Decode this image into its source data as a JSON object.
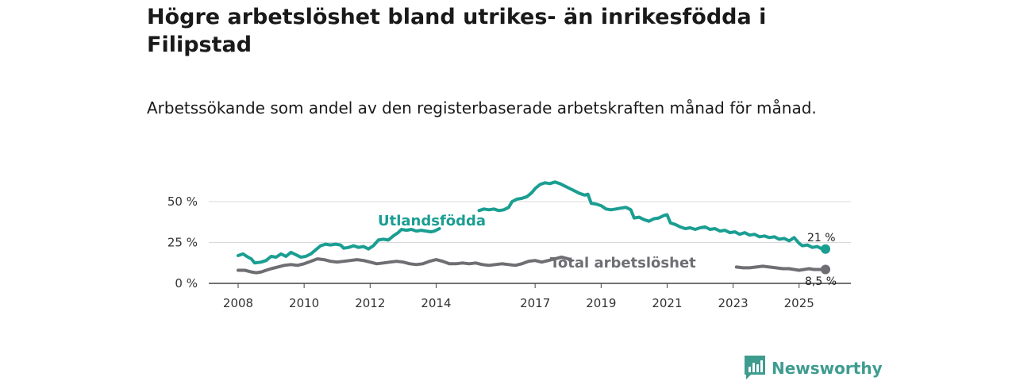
{
  "chart_data": {
    "type": "line",
    "title": "Högre arbetslöshet bland utrikes- än inrikesfödda i Filipstad",
    "subtitle": "Arbetssökande som andel av den registerbaserade arbetskraften månad för månad.",
    "xlabel": "",
    "ylabel": "",
    "xlim": [
      2008,
      2025.8
    ],
    "ylim": [
      0,
      60
    ],
    "y_ticks": [
      {
        "value": 0,
        "label": "0 %"
      },
      {
        "value": 25,
        "label": "25 %"
      },
      {
        "value": 50,
        "label": "50 %"
      }
    ],
    "x_ticks": [
      {
        "value": 2008,
        "label": "2008"
      },
      {
        "value": 2010,
        "label": "2010"
      },
      {
        "value": 2012,
        "label": "2012"
      },
      {
        "value": 2014,
        "label": "2014"
      },
      {
        "value": 2017,
        "label": "2017"
      },
      {
        "value": 2019,
        "label": "2019"
      },
      {
        "value": 2021,
        "label": "2021"
      },
      {
        "value": 2023,
        "label": "2023"
      },
      {
        "value": 2025,
        "label": "2025"
      }
    ],
    "grid": true,
    "series": [
      {
        "name": "Utlandsfödda",
        "color": "#1a9e92",
        "end_label": "21 %",
        "segments": [
          [
            [
              2008.0,
              17
            ],
            [
              2008.15,
              18
            ],
            [
              2008.3,
              16
            ],
            [
              2008.4,
              15
            ],
            [
              2008.5,
              12.5
            ],
            [
              2008.7,
              13
            ],
            [
              2008.85,
              14
            ],
            [
              2009.0,
              16.5
            ],
            [
              2009.15,
              16
            ],
            [
              2009.3,
              18
            ],
            [
              2009.45,
              16.5
            ],
            [
              2009.6,
              19
            ],
            [
              2009.75,
              17.5
            ],
            [
              2009.9,
              16
            ],
            [
              2010.05,
              16.5
            ],
            [
              2010.2,
              18
            ],
            [
              2010.35,
              20.5
            ],
            [
              2010.5,
              23
            ],
            [
              2010.65,
              24
            ],
            [
              2010.8,
              23.5
            ],
            [
              2010.95,
              24
            ],
            [
              2011.1,
              23.5
            ],
            [
              2011.2,
              21.5
            ],
            [
              2011.35,
              22
            ],
            [
              2011.5,
              23
            ],
            [
              2011.65,
              22
            ],
            [
              2011.8,
              22.5
            ],
            [
              2011.95,
              21
            ],
            [
              2012.1,
              23
            ],
            [
              2012.25,
              26.5
            ],
            [
              2012.4,
              27
            ],
            [
              2012.55,
              26.5
            ],
            [
              2012.7,
              29
            ],
            [
              2012.85,
              31
            ],
            [
              2012.95,
              33
            ],
            [
              2013.1,
              32.5
            ],
            [
              2013.25,
              33
            ],
            [
              2013.4,
              32
            ],
            [
              2013.55,
              32.5
            ],
            [
              2013.7,
              32
            ],
            [
              2013.85,
              31.5
            ],
            [
              2013.95,
              32
            ],
            [
              2014.1,
              33.5
            ]
          ],
          [
            [
              2015.3,
              44.5
            ],
            [
              2015.45,
              45.5
            ],
            [
              2015.6,
              45
            ],
            [
              2015.75,
              45.5
            ],
            [
              2015.9,
              44.5
            ],
            [
              2016.05,
              45
            ],
            [
              2016.2,
              46.5
            ],
            [
              2016.3,
              50
            ],
            [
              2016.45,
              51.5
            ],
            [
              2016.6,
              52
            ],
            [
              2016.75,
              53
            ],
            [
              2016.9,
              55.5
            ],
            [
              2017.0,
              58
            ],
            [
              2017.15,
              60.5
            ],
            [
              2017.3,
              61.5
            ],
            [
              2017.45,
              61
            ],
            [
              2017.6,
              62
            ],
            [
              2017.75,
              61
            ],
            [
              2017.9,
              59.5
            ],
            [
              2018.05,
              58
            ],
            [
              2018.2,
              56.5
            ],
            [
              2018.35,
              55
            ],
            [
              2018.5,
              54
            ],
            [
              2018.6,
              54.5
            ],
            [
              2018.7,
              49
            ],
            [
              2018.85,
              48.5
            ],
            [
              2019.0,
              47.5
            ],
            [
              2019.15,
              45.5
            ],
            [
              2019.3,
              45
            ],
            [
              2019.45,
              45.5
            ],
            [
              2019.6,
              46
            ],
            [
              2019.75,
              46.5
            ],
            [
              2019.9,
              45
            ],
            [
              2020.0,
              40
            ],
            [
              2020.15,
              40.5
            ],
            [
              2020.3,
              39
            ],
            [
              2020.45,
              38
            ],
            [
              2020.6,
              39.5
            ],
            [
              2020.75,
              40
            ],
            [
              2020.9,
              41.5
            ],
            [
              2021.0,
              42
            ],
            [
              2021.1,
              37
            ],
            [
              2021.25,
              36
            ],
            [
              2021.4,
              34.5
            ],
            [
              2021.55,
              33.5
            ],
            [
              2021.7,
              34
            ],
            [
              2021.85,
              33
            ],
            [
              2022.0,
              34
            ],
            [
              2022.15,
              34.5
            ],
            [
              2022.3,
              33
            ],
            [
              2022.45,
              33.5
            ],
            [
              2022.6,
              32
            ],
            [
              2022.75,
              32.5
            ],
            [
              2022.9,
              31
            ],
            [
              2023.05,
              31.5
            ],
            [
              2023.2,
              30
            ],
            [
              2023.35,
              31
            ],
            [
              2023.5,
              29.5
            ],
            [
              2023.65,
              30
            ],
            [
              2023.8,
              28.5
            ],
            [
              2023.95,
              29
            ],
            [
              2024.1,
              28
            ],
            [
              2024.25,
              28.5
            ],
            [
              2024.4,
              27
            ],
            [
              2024.55,
              27.5
            ],
            [
              2024.7,
              26
            ],
            [
              2024.85,
              28
            ],
            [
              2025.0,
              24.5
            ],
            [
              2025.1,
              23
            ],
            [
              2025.25,
              23.5
            ],
            [
              2025.4,
              22
            ],
            [
              2025.55,
              22.5
            ],
            [
              2025.7,
              21
            ],
            [
              2025.8,
              21
            ]
          ]
        ]
      },
      {
        "name": "Total arbetslöshet",
        "color": "#6e6e73",
        "end_label": "8,5 %",
        "segments": [
          [
            [
              2008.0,
              8
            ],
            [
              2008.2,
              8
            ],
            [
              2008.4,
              7
            ],
            [
              2008.55,
              6.5
            ],
            [
              2008.7,
              7
            ],
            [
              2008.85,
              8
            ],
            [
              2009.0,
              9
            ],
            [
              2009.2,
              10
            ],
            [
              2009.4,
              11
            ],
            [
              2009.6,
              11.5
            ],
            [
              2009.8,
              11
            ],
            [
              2010.0,
              12
            ],
            [
              2010.2,
              13.5
            ],
            [
              2010.4,
              15
            ],
            [
              2010.6,
              14.5
            ],
            [
              2010.8,
              13.5
            ],
            [
              2011.0,
              13
            ],
            [
              2011.2,
              13.5
            ],
            [
              2011.4,
              14
            ],
            [
              2011.6,
              14.5
            ],
            [
              2011.8,
              14
            ],
            [
              2012.0,
              13
            ],
            [
              2012.2,
              12
            ],
            [
              2012.4,
              12.5
            ],
            [
              2012.6,
              13
            ],
            [
              2012.8,
              13.5
            ],
            [
              2013.0,
              13
            ],
            [
              2013.2,
              12
            ],
            [
              2013.4,
              11.5
            ],
            [
              2013.6,
              12
            ],
            [
              2013.8,
              13.5
            ],
            [
              2014.0,
              14.5
            ],
            [
              2014.2,
              13.5
            ],
            [
              2014.4,
              12
            ],
            [
              2014.6,
              12
            ],
            [
              2014.8,
              12.5
            ],
            [
              2015.0,
              12
            ],
            [
              2015.2,
              12.5
            ],
            [
              2015.4,
              11.5
            ],
            [
              2015.6,
              11
            ],
            [
              2015.8,
              11.5
            ],
            [
              2016.0,
              12
            ],
            [
              2016.2,
              11.5
            ],
            [
              2016.4,
              11
            ],
            [
              2016.6,
              12
            ],
            [
              2016.8,
              13.5
            ],
            [
              2017.0,
              14
            ],
            [
              2017.2,
              13
            ],
            [
              2017.4,
              14
            ],
            [
              2017.6,
              15
            ],
            [
              2017.8,
              16
            ],
            [
              2018.0,
              15
            ],
            [
              2018.1,
              14
            ]
          ],
          [
            [
              2023.1,
              10
            ],
            [
              2023.3,
              9.5
            ],
            [
              2023.5,
              9.5
            ],
            [
              2023.7,
              10
            ],
            [
              2023.9,
              10.5
            ],
            [
              2024.1,
              10
            ],
            [
              2024.3,
              9.5
            ],
            [
              2024.5,
              9
            ],
            [
              2024.7,
              9
            ],
            [
              2024.85,
              8.5
            ],
            [
              2025.0,
              8
            ],
            [
              2025.15,
              8.5
            ],
            [
              2025.3,
              9
            ],
            [
              2025.45,
              8.5
            ],
            [
              2025.6,
              8.5
            ],
            [
              2025.8,
              8.5
            ]
          ]
        ]
      }
    ]
  },
  "brand": {
    "name": "Newsworthy",
    "color": "#3e9c8f"
  }
}
